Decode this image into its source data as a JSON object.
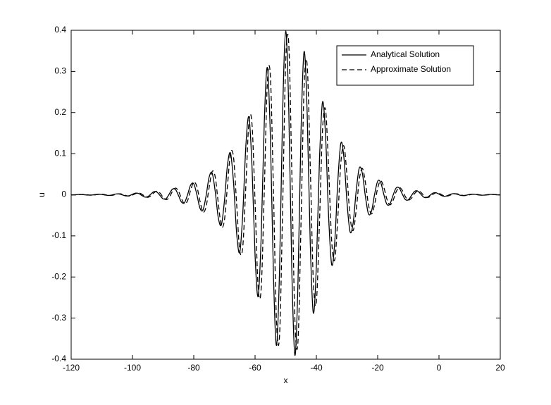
{
  "chart_data": {
    "type": "line",
    "xlabel": "x",
    "ylabel": "u",
    "x": [
      -120,
      -119,
      -118,
      -117,
      -116,
      -115,
      -114,
      -113,
      -112,
      -111,
      -110,
      -109,
      -108,
      -107,
      -106,
      -105,
      -104,
      -103,
      -102,
      -101,
      -100,
      -99,
      -98,
      -97,
      -96,
      -95,
      -94,
      -93,
      -92,
      -91,
      -90,
      -89,
      -88,
      -87,
      -86,
      -85,
      -84,
      -83,
      -82,
      -81,
      -80,
      -79,
      -78,
      -77,
      -76,
      -75,
      -74,
      -73,
      -72,
      -71,
      -70,
      -69,
      -68,
      -67,
      -66,
      -65,
      -64,
      -63,
      -62,
      -61,
      -60,
      -59,
      -58,
      -57,
      -56,
      -55,
      -54,
      -53,
      -52,
      -51,
      -50,
      -49,
      -48,
      -47,
      -46,
      -45,
      -44,
      -43,
      -42,
      -41,
      -40,
      -39,
      -38,
      -37,
      -36,
      -35,
      -34,
      -33,
      -32,
      -31,
      -30,
      -29,
      -28,
      -27,
      -26,
      -25,
      -24,
      -23,
      -22,
      -21,
      -20,
      -19,
      -18,
      -17,
      -16,
      -15,
      -14,
      -13,
      -12,
      -11,
      -10,
      -9,
      -8,
      -7,
      -6,
      -5,
      -4,
      -3,
      -2,
      -1,
      0,
      1,
      2,
      3,
      4,
      5,
      6,
      7,
      8,
      9,
      10,
      11,
      12,
      13,
      14,
      15,
      16,
      17,
      18,
      19,
      20
    ],
    "series": [
      {
        "name": "Analytical Solution",
        "color": "#000000",
        "dash": "solid",
        "values": [
          -0.0005,
          -0.0002,
          0.0004,
          0.0006,
          0.0003,
          -0.0005,
          -0.0009,
          -0.0005,
          0.0006,
          0.0012,
          0.0007,
          -0.0007,
          -0.0016,
          -0.001,
          0.0009,
          0.0022,
          0.0014,
          -0.001,
          -0.003,
          -0.0021,
          0.0012,
          0.004,
          0.0031,
          -0.0014,
          -0.0055,
          -0.0045,
          0.0016,
          0.0074,
          0.0064,
          -0.0018,
          -0.01,
          -0.0093,
          0.0017,
          0.0134,
          0.0133,
          -0.0014,
          -0.018,
          -0.0188,
          0.0007,
          0.0241,
          0.0266,
          0.0008,
          -0.0321,
          -0.0375,
          -0.0035,
          0.0424,
          0.0526,
          0.008,
          -0.0558,
          -0.0734,
          -0.0154,
          0.0726,
          0.1009,
          0.0271,
          -0.0946,
          -0.1402,
          -0.0443,
          0.1199,
          0.1889,
          0.069,
          -0.1474,
          -0.247,
          -0.1015,
          0.1746,
          0.3094,
          0.1403,
          -0.1957,
          -0.3666,
          -0.1791,
          0.2014,
          0.398,
          0.206,
          -0.1871,
          -0.3906,
          -0.213,
          0.1556,
          0.3483,
          0.1986,
          -0.1169,
          -0.2875,
          -0.1731,
          0.0818,
          0.2252,
          0.1437,
          -0.0535,
          -0.1702,
          -0.1147,
          0.0331,
          0.1257,
          0.0895,
          -0.0188,
          -0.0902,
          -0.0684,
          0.0098,
          0.065,
          0.0522,
          -0.0043,
          -0.0464,
          -0.0395,
          0.001,
          0.033,
          0.0296,
          0.0009,
          -0.0232,
          -0.0222,
          -0.0018,
          0.0163,
          0.0166,
          0.0022,
          -0.0114,
          -0.0124,
          -0.0022,
          0.008,
          0.0092,
          0.002,
          -0.0056,
          -0.0068,
          -0.0018,
          0.0039,
          0.005,
          0.0015,
          -0.0026,
          -0.0037,
          -0.0013,
          0.0018,
          0.0027,
          0.001,
          -0.0012,
          -0.002,
          -0.0009,
          0.0008,
          0.0014,
          0.0007,
          -0.0006,
          -0.0011,
          -0.0006,
          0.0004,
          0.0008,
          0.0004,
          -0.0002,
          -0.0006
        ]
      },
      {
        "name": "Approximate Solution",
        "color": "#000000",
        "dash": "dashed",
        "values": [
          -0.0004,
          -0.0004,
          0,
          0.0005,
          0.0006,
          0,
          -0.0008,
          -0.0009,
          -0.0001,
          0.001,
          0.0012,
          0.0002,
          -0.0013,
          -0.0017,
          -0.0003,
          0.0017,
          0.0023,
          0.0006,
          -0.0022,
          -0.0032,
          -0.001,
          0.0028,
          0.0045,
          0.0017,
          -0.0037,
          -0.0062,
          -0.0026,
          0.0047,
          0.0085,
          0.004,
          -0.006,
          -0.0119,
          -0.0062,
          0.0076,
          0.0163,
          0.0093,
          -0.0095,
          -0.0223,
          -0.0138,
          0.0118,
          0.0304,
          0.0203,
          -0.0144,
          -0.0415,
          -0.0298,
          0.0172,
          0.0564,
          0.0433,
          -0.02,
          -0.076,
          -0.0621,
          0.0224,
          0.101,
          0.0893,
          -0.0239,
          -0.1357,
          -0.1253,
          0.0231,
          0.177,
          0.1718,
          -0.0179,
          -0.2238,
          -0.2276,
          0.0076,
          0.2706,
          0.288,
          0.0084,
          -0.3097,
          -0.3406,
          -0.0301,
          0.3244,
          0.3664,
          0.0513,
          -0.3062,
          -0.3566,
          -0.0657,
          0.2629,
          0.3154,
          0.0715,
          -0.2084,
          -0.2611,
          -0.0703,
          0.1562,
          0.2066,
          0.0639,
          -0.1126,
          -0.1581,
          -0.0548,
          0.0791,
          0.1184,
          0.0452,
          -0.0537,
          -0.0869,
          -0.0371,
          0.0364,
          0.064,
          0.0297,
          -0.0243,
          -0.0467,
          -0.0236,
          0.016,
          0.0338,
          0.0185,
          -0.0103,
          -0.0245,
          -0.0143,
          0.0066,
          0.0177,
          0.0111,
          -0.004,
          -0.0128,
          -0.0086,
          0.0024,
          0.0091,
          0.0065,
          -0.0014,
          -0.0065,
          -0.005,
          0.0007,
          0.0047,
          0.0038,
          -0.0003,
          -0.0033,
          -0.0028,
          0.0001,
          0.0023,
          0.0021,
          0.0001,
          -0.0017,
          -0.0016,
          -0.0001,
          0.0011,
          0.0012,
          0.0002,
          -0.0009,
          -0.0009,
          -0.0002,
          0.0006,
          0.0007,
          0.0001,
          -0.0004
        ]
      }
    ],
    "xlim": [
      -120,
      20
    ],
    "ylim": [
      -0.4,
      0.4
    ],
    "xticks": [
      -120,
      -100,
      -80,
      -60,
      -40,
      -20,
      0,
      20
    ],
    "yticks": [
      -0.4,
      -0.3,
      -0.2,
      -0.1,
      0,
      0.1,
      0.2,
      0.3,
      0.4
    ],
    "legend": "upper right",
    "grid": false
  }
}
